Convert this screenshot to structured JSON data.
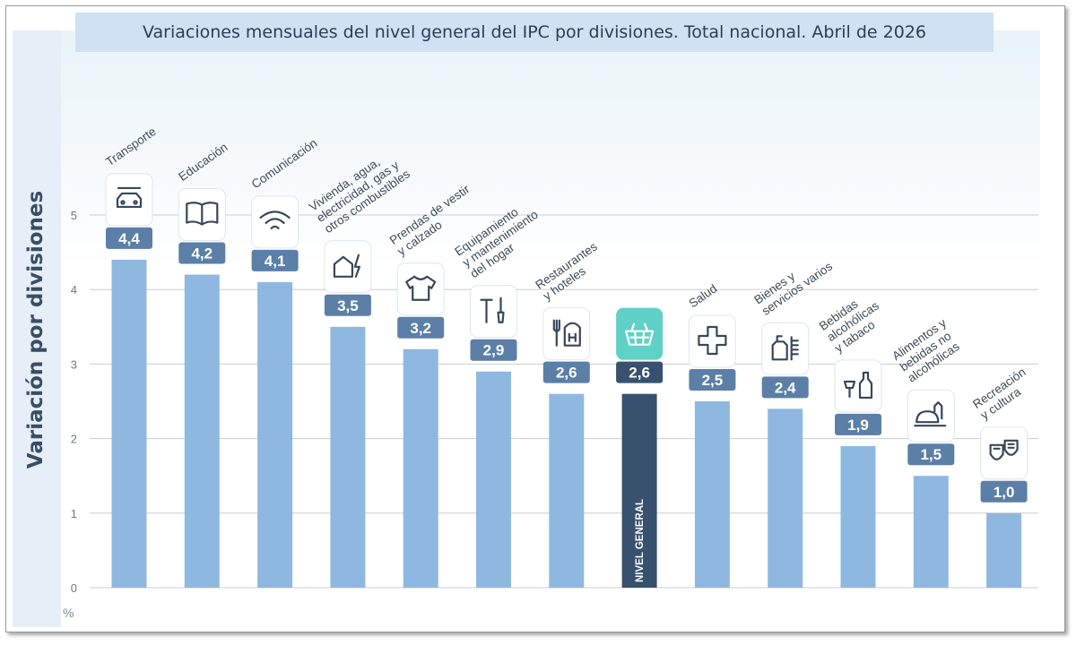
{
  "chart_data": {
    "type": "bar",
    "title": "Variaciones mensuales del nivel general del IPC por divisiones. Total nacional. Abril de 2026",
    "ylabel": "Variación por divisiones",
    "yunit": "%",
    "ylim": [
      0,
      5
    ],
    "yticks": [
      "0",
      "1",
      "2",
      "3",
      "4",
      "5"
    ],
    "grid": true,
    "categories": [
      [
        "Transporte"
      ],
      [
        "Educación"
      ],
      [
        "Comunicación"
      ],
      [
        "Vivienda, agua,",
        "electricidad, gas y",
        "otros combustibles"
      ],
      [
        "Prendas de vestir",
        "y calzado"
      ],
      [
        "Equipamiento",
        "y mantenimiento",
        "del hogar"
      ],
      [
        "Restaurantes",
        "y hoteles"
      ],
      [],
      [
        "Salud"
      ],
      [
        "Bienes y",
        "servicios varios"
      ],
      [
        "Bebidas",
        "alcohólicas",
        "y tabaco"
      ],
      [
        "Alimentos y",
        "bebidas no",
        "alcohólicas"
      ],
      [
        "Recreación",
        "y cultura"
      ]
    ],
    "values": [
      4.4,
      4.2,
      4.1,
      3.5,
      3.2,
      2.9,
      2.6,
      2.6,
      2.5,
      2.4,
      1.9,
      1.5,
      1.0
    ],
    "value_labels": [
      "4,4",
      "4,2",
      "4,1",
      "3,5",
      "3,2",
      "2,9",
      "2,6",
      "2,6",
      "2,5",
      "2,4",
      "1,9",
      "1,5",
      "1,0"
    ],
    "highlight_index": 7,
    "highlight_label": "NIVEL GENERAL",
    "icons": [
      "car-wrench-icon",
      "book-icon",
      "wifi-icon",
      "house-water-bolt-icon",
      "shirt-icon",
      "tools-icon",
      "fork-hotel-icon",
      "basket-icon",
      "plus-icon",
      "bottle-comb-icon",
      "glass-bottle-icon",
      "bread-bottle-icon",
      "theater-masks-icon"
    ],
    "colors": {
      "bar": "#8fb8e0",
      "highlight_bar": "#37516e",
      "label_box": "#5b7fa6",
      "highlight_label_box": "#37516e",
      "highlight_icon_box": "#5fd1c6",
      "grid": "#c9ced4",
      "axis_text": "#6c7a8a"
    }
  }
}
